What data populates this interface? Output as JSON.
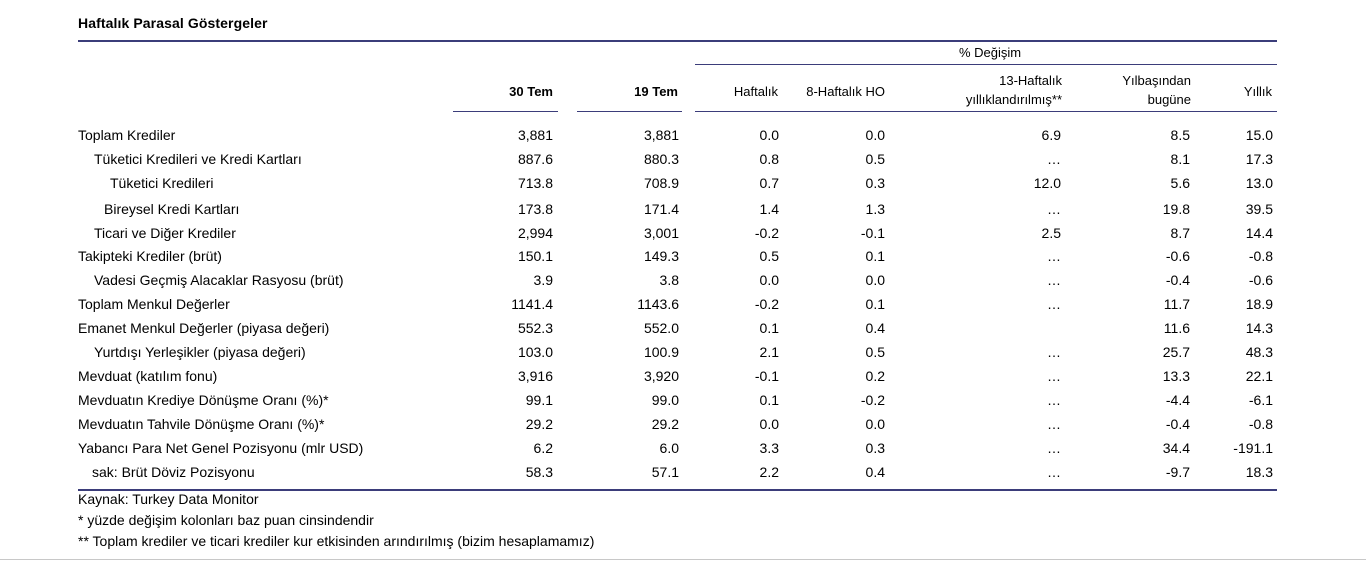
{
  "title": "Haftalık Parasal Göstergeler",
  "header": {
    "group_label": "% Değişim",
    "col_30tem": "30 Tem",
    "col_19tem": "19 Tem",
    "col_haftalik": "Haftalık",
    "col_8haftalik": "8-Haftalık HO",
    "col_13haftalik_line1": "13-Haftalık",
    "col_13haftalik_line2": "yıllıklandırılmış**",
    "col_ytd_line1": "Yılbaşından",
    "col_ytd_line2": "bugüne",
    "col_yillik": "Yıllık"
  },
  "rows": [
    {
      "label": "Toplam Krediler",
      "v1": "3,881",
      "v2": "3,881",
      "w": "0.0",
      "h8": "0.0",
      "h13": "6.9",
      "ytd": "8.5",
      "y": "15.0"
    },
    {
      "label": "Tüketici Kredileri ve Kredi Kartları",
      "v1": "887.6",
      "v2": "880.3",
      "w": "0.8",
      "h8": "0.5",
      "h13": "…",
      "ytd": "8.1",
      "y": "17.3"
    },
    {
      "label": "Tüketici Kredileri",
      "v1": "713.8",
      "v2": "708.9",
      "w": "0.7",
      "h8": "0.3",
      "h13": "12.0",
      "ytd": "5.6",
      "y": "13.0"
    },
    {
      "label": "Bireysel Kredi Kartları",
      "v1": "173.8",
      "v2": "171.4",
      "w": "1.4",
      "h8": "1.3",
      "h13": "…",
      "ytd": "19.8",
      "y": "39.5"
    },
    {
      "label": "Ticari ve Diğer Krediler",
      "v1": "2,994",
      "v2": "3,001",
      "w": "-0.2",
      "h8": "-0.1",
      "h13": "2.5",
      "ytd": "8.7",
      "y": "14.4"
    },
    {
      "label": "Takipteki Krediler (brüt)",
      "v1": "150.1",
      "v2": "149.3",
      "w": "0.5",
      "h8": "0.1",
      "h13": "…",
      "ytd": "-0.6",
      "y": "-0.8"
    },
    {
      "label": "Vadesi Geçmiş Alacaklar Rasyosu (brüt)",
      "v1": "3.9",
      "v2": "3.8",
      "w": "0.0",
      "h8": "0.0",
      "h13": "…",
      "ytd": "-0.4",
      "y": "-0.6"
    },
    {
      "label": "Toplam Menkul Değerler",
      "v1": "1141.4",
      "v2": "1143.6",
      "w": "-0.2",
      "h8": "0.1",
      "h13": "…",
      "ytd": "11.7",
      "y": "18.9"
    },
    {
      "label": "Emanet Menkul Değerler (piyasa değeri)",
      "v1": "552.3",
      "v2": "552.0",
      "w": "0.1",
      "h8": "0.4",
      "h13": "",
      "ytd": "11.6",
      "y": "14.3"
    },
    {
      "label": "Yurtdışı Yerleşikler (piyasa değeri)",
      "v1": "103.0",
      "v2": "100.9",
      "w": "2.1",
      "h8": "0.5",
      "h13": "…",
      "ytd": "25.7",
      "y": "48.3"
    },
    {
      "label": "Mevduat (katılım fonu)",
      "v1": "3,916",
      "v2": "3,920",
      "w": "-0.1",
      "h8": "0.2",
      "h13": "…",
      "ytd": "13.3",
      "y": "22.1"
    },
    {
      "label": "Mevduatın Krediye Dönüşme Oranı (%)*",
      "v1": "99.1",
      "v2": "99.0",
      "w": "0.1",
      "h8": "-0.2",
      "h13": "…",
      "ytd": "-4.4",
      "y": "-6.1"
    },
    {
      "label": "Mevduatın Tahvile Dönüşme Oranı (%)*",
      "v1": "29.2",
      "v2": "29.2",
      "w": "0.0",
      "h8": "0.0",
      "h13": "…",
      "ytd": "-0.4",
      "y": "-0.8"
    },
    {
      "label": "Yabancı Para Net Genel Pozisyonu (mlr USD)",
      "v1": "6.2",
      "v2": "6.0",
      "w": "3.3",
      "h8": "0.3",
      "h13": "…",
      "ytd": "34.4",
      "y": "-191.1"
    },
    {
      "label": "sak: Brüt Döviz Pozisyonu",
      "v1": "58.3",
      "v2": "57.1",
      "w": "2.2",
      "h8": "0.4",
      "h13": "…",
      "ytd": "-9.7",
      "y": "18.3"
    }
  ],
  "notes": {
    "source": "Kaynak: Turkey Data Monitor",
    "note1": "* yüzde değişim kolonları baz puan cinsindendir",
    "note2": "** Toplam krediler ve ticari krediler kur etkisinden arındırılmış (bizim hesaplamamız)"
  }
}
